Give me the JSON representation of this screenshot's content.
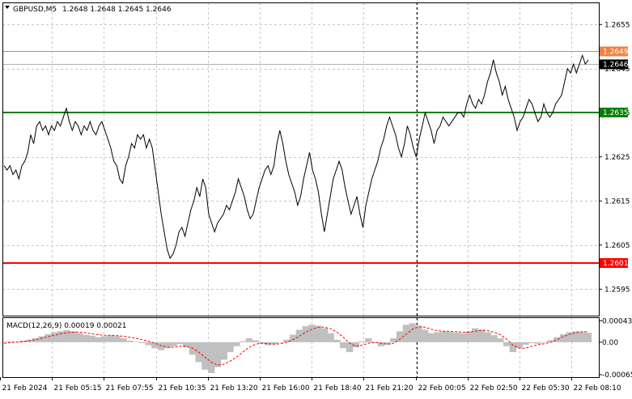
{
  "header": {
    "symbol_timeframe": "GBPUSD,M5",
    "ohlc": "1.2648 1.2648 1.2645 1.2646"
  },
  "colors": {
    "background": "#ffffff",
    "grid": "#c8c8c8",
    "price_line": "#000000",
    "level_green": "#008000",
    "level_red": "#ff0000",
    "level_orange": "#f08040",
    "current_gray": "#b0b0b0",
    "macd_hist": "#c0c0c0",
    "macd_signal": "#ff0000",
    "separator": "#000000"
  },
  "chart_data": [
    {
      "type": "line",
      "title": "GBPUSD,M5",
      "y_tick_labels": [
        "1.2655",
        "1.2645",
        "1.2635",
        "1.2625",
        "1.2615",
        "1.2605",
        "1.2595"
      ],
      "y_ticks": [
        1.2655,
        1.2645,
        1.2635,
        1.2625,
        1.2615,
        1.2605,
        1.2595
      ],
      "ylim": [
        1.2589,
        1.266
      ],
      "grid": true,
      "x_tick_labels": [
        "21 Feb 2024",
        "21 Feb 05:15",
        "21 Feb 07:55",
        "21 Feb 10:35",
        "21 Feb 13:20",
        "21 Feb 16:00",
        "21 Feb 18:40",
        "21 Feb 21:20",
        "22 Feb 00:05",
        "22 Feb 02:50",
        "22 Feb 05:30",
        "22 Feb 08:10"
      ],
      "levels": [
        {
          "label": "1.2649",
          "value": 1.2649,
          "style": "orange"
        },
        {
          "label": "1.2646",
          "value": 1.2646,
          "style": "current"
        },
        {
          "label": "1.2635",
          "value": 1.2635,
          "style": "green"
        },
        {
          "label": "1.2601",
          "value": 1.2601,
          "style": "red"
        }
      ],
      "series": [
        {
          "values": [
            1.2623,
            1.2622,
            1.2623,
            1.2621,
            1.2622,
            1.262,
            1.2623,
            1.2624,
            1.2626,
            1.263,
            1.2628,
            1.2632,
            1.2633,
            1.2631,
            1.2632,
            1.263,
            1.2632,
            1.2631,
            1.2633,
            1.2632,
            1.2634,
            1.2636,
            1.2633,
            1.2631,
            1.2633,
            1.2632,
            1.263,
            1.2632,
            1.2631,
            1.2633,
            1.2631,
            1.263,
            1.2632,
            1.2633,
            1.2631,
            1.2629,
            1.2627,
            1.2624,
            1.2623,
            1.262,
            1.2619,
            1.2623,
            1.2625,
            1.2628,
            1.2627,
            1.263,
            1.2629,
            1.263,
            1.2627,
            1.2629,
            1.2627,
            1.2622,
            1.2617,
            1.2612,
            1.2608,
            1.2604,
            1.2602,
            1.2603,
            1.2605,
            1.2608,
            1.2609,
            1.2607,
            1.261,
            1.2613,
            1.2615,
            1.2618,
            1.2616,
            1.262,
            1.2618,
            1.2612,
            1.261,
            1.2608,
            1.261,
            1.2611,
            1.2612,
            1.2614,
            1.2613,
            1.2615,
            1.2617,
            1.262,
            1.2618,
            1.2616,
            1.2613,
            1.2611,
            1.2612,
            1.2615,
            1.2618,
            1.262,
            1.2622,
            1.2623,
            1.2621,
            1.2623,
            1.2628,
            1.2631,
            1.2628,
            1.2624,
            1.2621,
            1.2619,
            1.2617,
            1.2614,
            1.2616,
            1.262,
            1.2623,
            1.2626,
            1.2622,
            1.262,
            1.2617,
            1.2612,
            1.2608,
            1.2612,
            1.2616,
            1.262,
            1.2622,
            1.2624,
            1.2622,
            1.2618,
            1.2615,
            1.2612,
            1.2614,
            1.2616,
            1.2612,
            1.2609,
            1.2614,
            1.2617,
            1.262,
            1.2622,
            1.2624,
            1.2627,
            1.2629,
            1.2632,
            1.2634,
            1.2632,
            1.263,
            1.2627,
            1.2625,
            1.2628,
            1.2632,
            1.263,
            1.2627,
            1.2625,
            1.2629,
            1.2632,
            1.2635,
            1.2633,
            1.2631,
            1.2628,
            1.2631,
            1.2632,
            1.2634,
            1.2633,
            1.2632,
            1.2633,
            1.2634,
            1.2635,
            1.2635,
            1.2634,
            1.2637,
            1.2639,
            1.2637,
            1.2636,
            1.2638,
            1.2637,
            1.2639,
            1.2642,
            1.2644,
            1.2647,
            1.2644,
            1.2642,
            1.2639,
            1.2641,
            1.2638,
            1.2636,
            1.2634,
            1.2631,
            1.2633,
            1.2634,
            1.2636,
            1.2638,
            1.2637,
            1.2635,
            1.2633,
            1.2634,
            1.2637,
            1.2635,
            1.2634,
            1.2635,
            1.2637,
            1.2638,
            1.2639,
            1.2642,
            1.2645,
            1.2644,
            1.2646,
            1.2644,
            1.2646,
            1.2648,
            1.2646,
            1.2647
          ]
        }
      ]
    },
    {
      "type": "bar",
      "title": "MACD(12,26,9) 0.00019 0.00021",
      "y_tick_labels": [
        "0.00043",
        "0.00",
        "-0.00065"
      ],
      "y_ticks": [
        0.00043,
        0.0,
        -0.00065
      ],
      "ylim": [
        -0.0007,
        0.0005
      ],
      "series": [
        {
          "name": "MACD",
          "values": [
            0.0,
            2e-05,
            1e-05,
            3e-05,
            5e-05,
            8e-05,
            0.00012,
            0.00016,
            0.0002,
            0.00022,
            0.00024,
            0.00022,
            0.00018,
            0.00015,
            0.00013,
            0.0001,
            0.00012,
            0.00014,
            0.00012,
            8e-05,
            3e-05,
            1e-05,
            -2e-05,
            -6e-05,
            -0.00012,
            -0.00016,
            -0.00012,
            -8e-05,
            -4e-05,
            -0.0001,
            -0.00025,
            -0.0004,
            -0.00055,
            -0.00062,
            -0.0005,
            -0.00035,
            -0.0002,
            -8e-05,
            2e-05,
            8e-05,
            4e-05,
            -3e-05,
            -6e-05,
            -4e-05,
            -1e-05,
            5e-05,
            0.00015,
            0.00025,
            0.00032,
            0.00035,
            0.00033,
            0.00028,
            0.00018,
            5e-05,
            -0.00012,
            -0.0002,
            -0.0001,
            2e-05,
            8e-05,
            -2e-05,
            -8e-05,
            -5e-05,
            8e-05,
            0.00022,
            0.00035,
            0.00038,
            0.00033,
            0.00025,
            0.00018,
            0.0002,
            0.00022,
            0.00021,
            0.00019,
            0.00018,
            0.00022,
            0.00028,
            0.00025,
            0.0002,
            0.00014,
            8e-05,
            -8e-05,
            -0.0002,
            -0.00012,
            -5e-05,
            -2e-05,
            -3e-05,
            -1e-05,
            4e-05,
            0.0001,
            0.00016,
            0.0002,
            0.00022,
            0.00021,
            0.00019
          ]
        },
        {
          "name": "Signal",
          "values": [
            -2e-05,
            -1e-05,
            0.0,
            1e-05,
            3e-05,
            5e-05,
            8e-05,
            0.00011,
            0.00014,
            0.00017,
            0.00019,
            0.0002,
            0.0002,
            0.00019,
            0.00017,
            0.00015,
            0.00014,
            0.00014,
            0.00013,
            0.00012,
            0.0001,
            8e-05,
            5e-05,
            2e-05,
            -2e-05,
            -7e-05,
            -0.0001,
            -0.0001,
            -8e-05,
            -8e-05,
            -0.00012,
            -0.0002,
            -0.0003,
            -0.0004,
            -0.00046,
            -0.00044,
            -0.00038,
            -0.0003,
            -0.0002,
            -0.0001,
            -4e-05,
            -2e-05,
            -3e-05,
            -4e-05,
            -3e-05,
            0.0,
            5e-05,
            0.00012,
            0.0002,
            0.00026,
            0.0003,
            0.0003,
            0.00027,
            0.0002,
            0.0001,
            -2e-05,
            -8e-05,
            -6e-05,
            -2e-05,
            0.0,
            -2e-05,
            -4e-05,
            -2e-05,
            6e-05,
            0.00016,
            0.00026,
            0.00031,
            0.0003,
            0.00026,
            0.00023,
            0.00022,
            0.00022,
            0.00021,
            0.0002,
            0.0002,
            0.00022,
            0.00024,
            0.00023,
            0.0002,
            0.00015,
            6e-05,
            -6e-05,
            -0.00012,
            -0.00012,
            -8e-05,
            -5e-05,
            -3e-05,
            0.0,
            5e-05,
            0.00011,
            0.00016,
            0.00019,
            0.00021,
            0.00021
          ]
        }
      ]
    }
  ]
}
